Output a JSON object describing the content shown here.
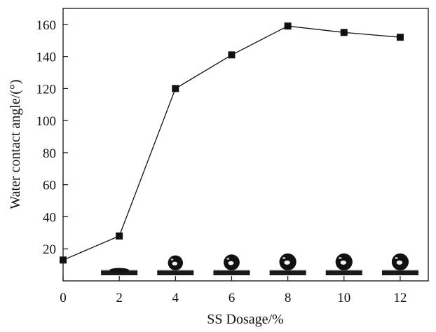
{
  "chart_data": {
    "type": "line",
    "title": "",
    "xlabel": "SS Dosage/%",
    "ylabel": "Water contact angle/(°)",
    "x": [
      0,
      2,
      4,
      6,
      8,
      10,
      12
    ],
    "y": [
      13,
      28,
      120,
      141,
      159,
      155,
      152
    ],
    "xlim": [
      0,
      13
    ],
    "ylim": [
      0,
      170
    ],
    "xticks": [
      "0",
      "2",
      "4",
      "6",
      "8",
      "10",
      "12"
    ],
    "yticks": [
      "20",
      "40",
      "60",
      "80",
      "100",
      "120",
      "140",
      "160"
    ],
    "grid": false,
    "legend": "none",
    "marker": "square",
    "line_color": "#111111",
    "marker_color": "#111111",
    "droplet_insets_at_x": [
      2,
      4,
      6,
      8,
      10,
      12
    ]
  }
}
